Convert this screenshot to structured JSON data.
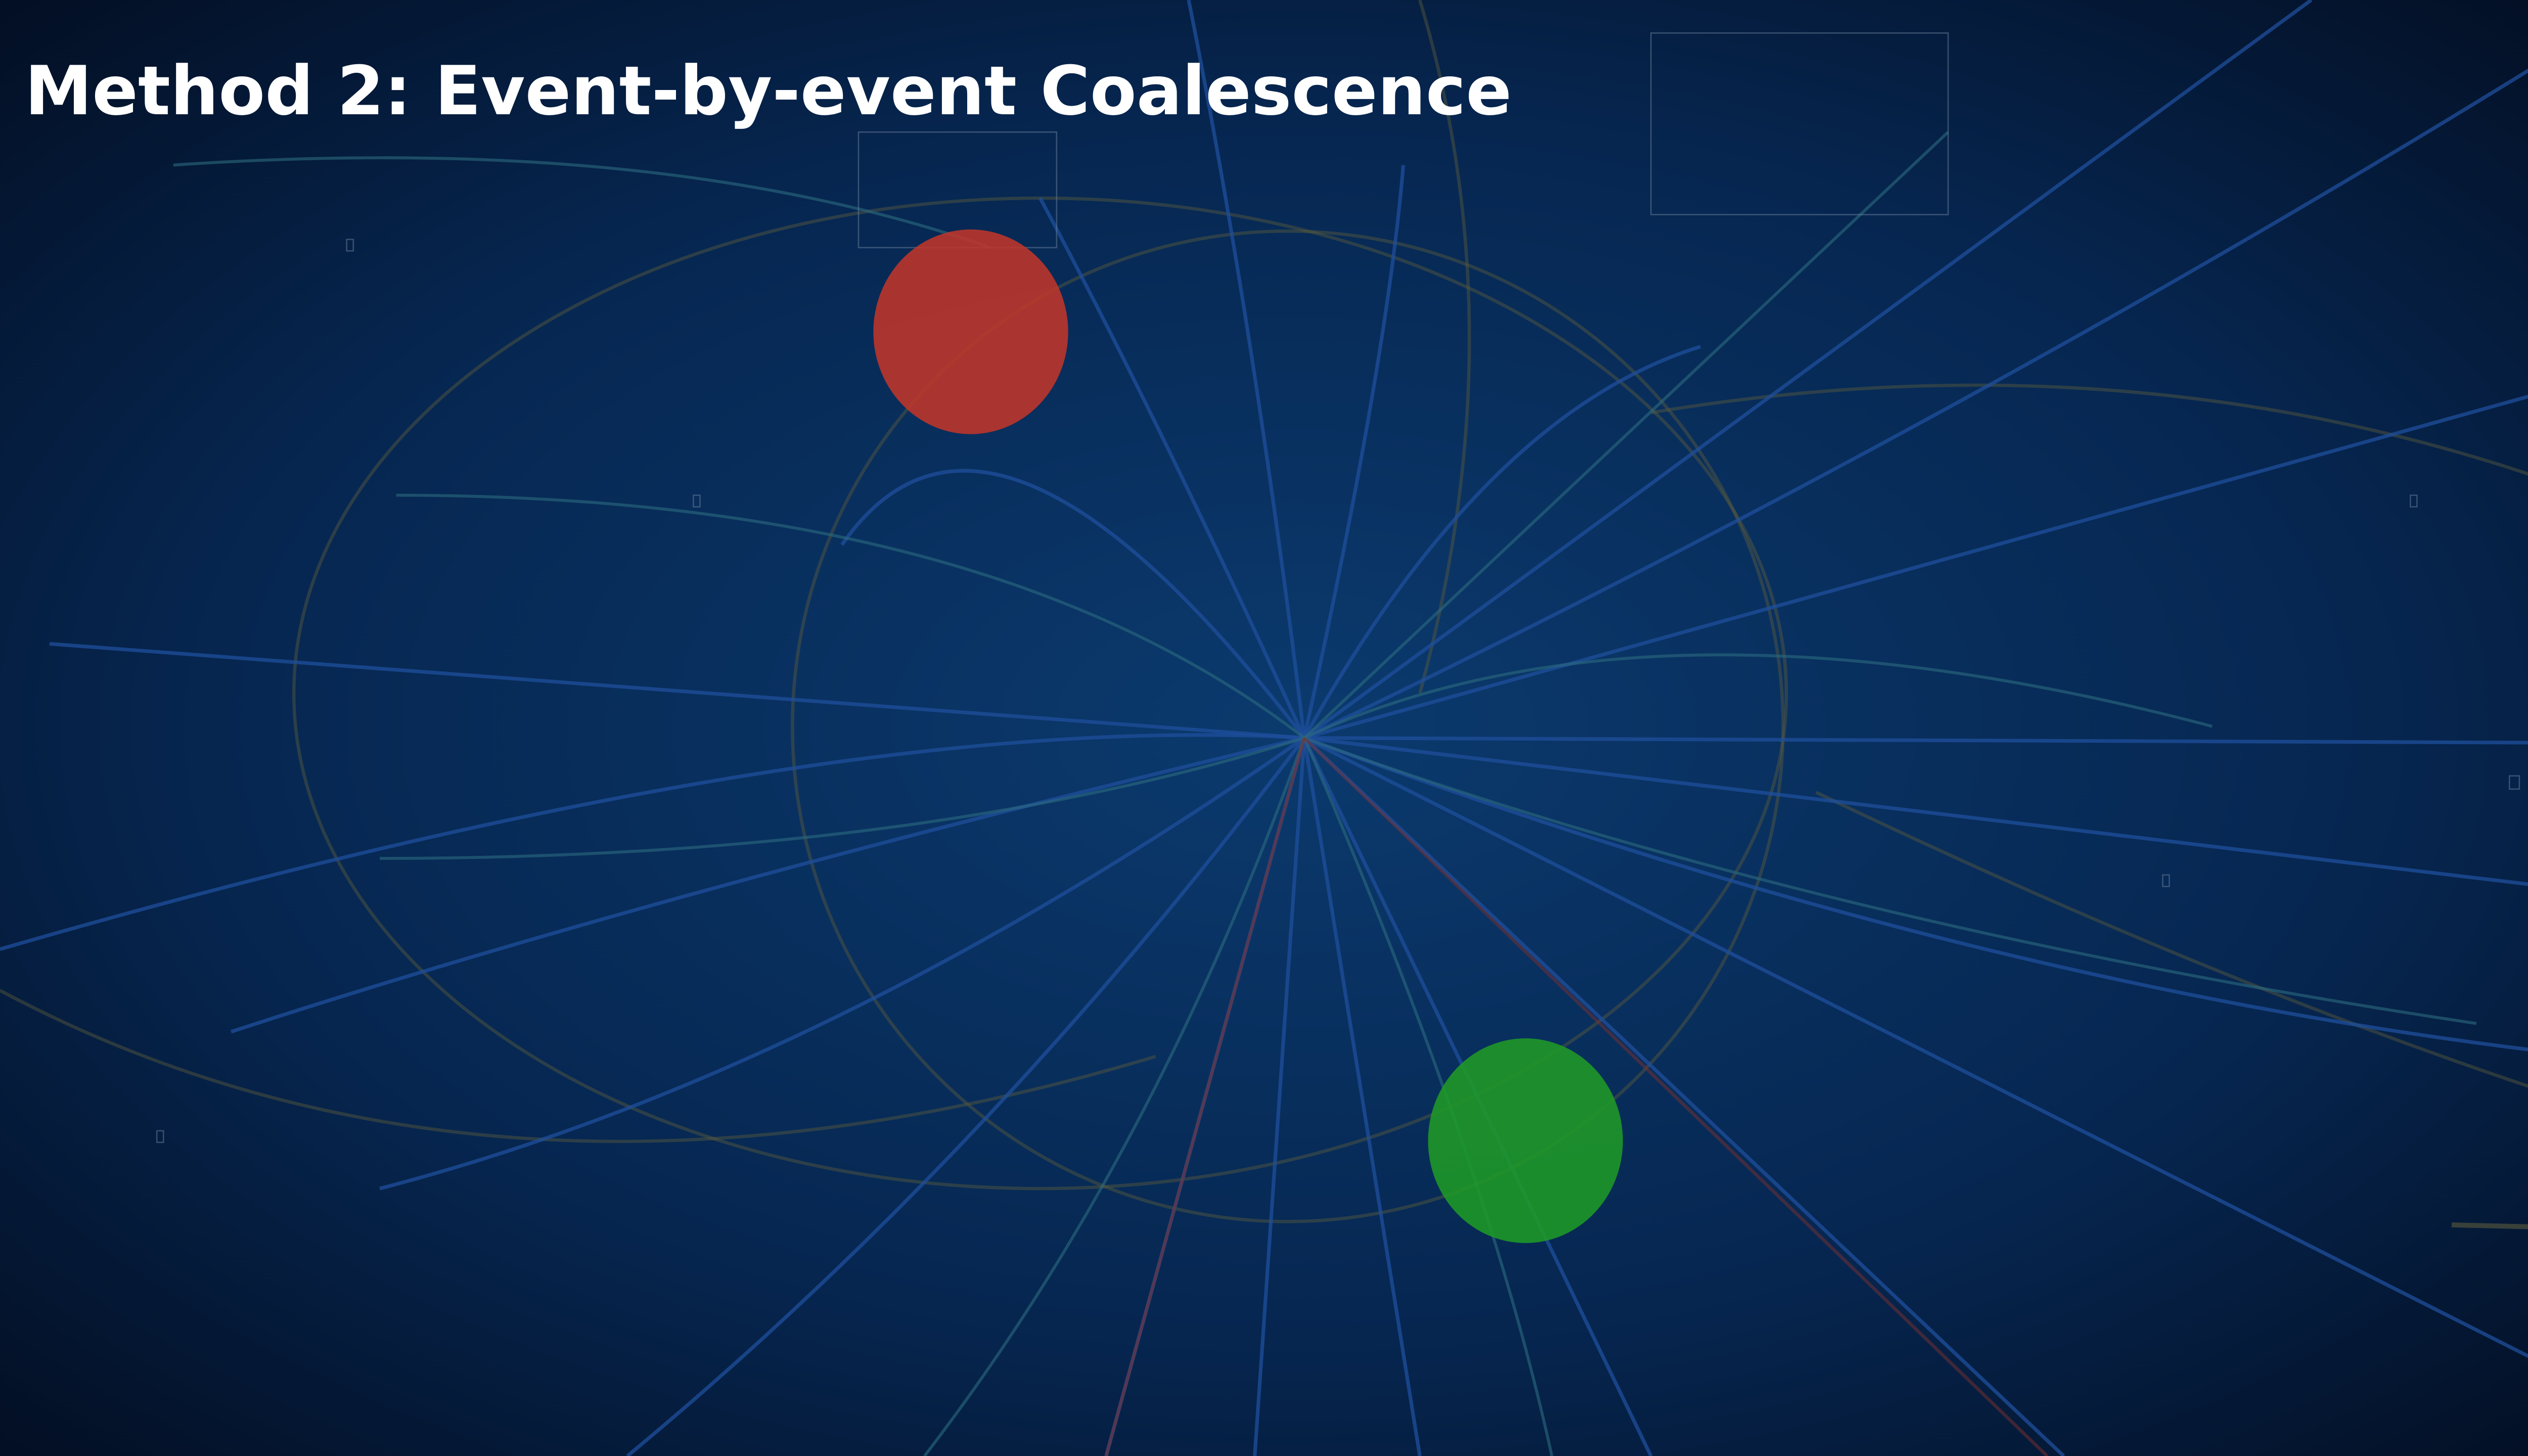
{
  "title": "Method 2: Event-by-event Coalescence"
}
